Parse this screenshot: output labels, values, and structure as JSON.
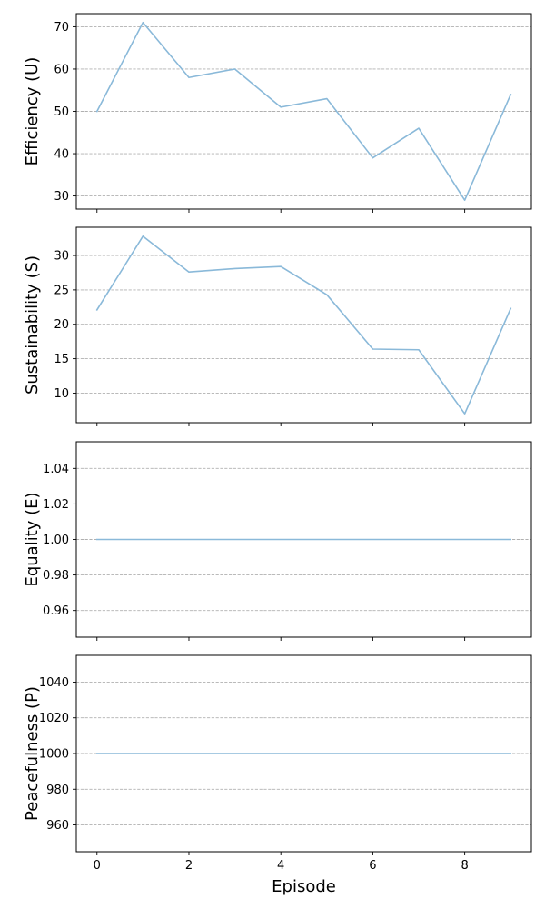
{
  "chart_data": [
    {
      "type": "line",
      "ylabel": "Efficiency (U)",
      "xlabel": "",
      "x": [
        0,
        1,
        2,
        3,
        4,
        5,
        6,
        7,
        8,
        9
      ],
      "series": [
        {
          "values": [
            50,
            71,
            58,
            60,
            51,
            53,
            39,
            46,
            29,
            54
          ]
        }
      ],
      "xlim": [
        -0.45,
        9.45
      ],
      "ylim": [
        26.9,
        73.1
      ],
      "yticks": [
        30,
        40,
        50,
        60,
        70
      ],
      "xticks": [
        0,
        2,
        4,
        6,
        8
      ],
      "show_xtick_labels": false,
      "grid": "y, dashed",
      "color": "#8ab9d9"
    },
    {
      "type": "line",
      "ylabel": "Sustainability (S)",
      "xlabel": "",
      "x": [
        0,
        1,
        2,
        3,
        4,
        5,
        6,
        7,
        8,
        9
      ],
      "series": [
        {
          "values": [
            22.1,
            32.8,
            27.6,
            28.1,
            28.4,
            24.3,
            16.4,
            16.3,
            7.0,
            22.3
          ]
        }
      ],
      "xlim": [
        -0.45,
        9.45
      ],
      "ylim": [
        5.7,
        34.1
      ],
      "yticks": [
        10,
        15,
        20,
        25,
        30
      ],
      "xticks": [
        0,
        2,
        4,
        6,
        8
      ],
      "show_xtick_labels": false,
      "grid": "y, dashed",
      "color": "#8ab9d9"
    },
    {
      "type": "line",
      "ylabel": "Equality (E)",
      "xlabel": "",
      "x": [
        0,
        1,
        2,
        3,
        4,
        5,
        6,
        7,
        8,
        9
      ],
      "series": [
        {
          "values": [
            1.0,
            1.0,
            1.0,
            1.0,
            1.0,
            1.0,
            1.0,
            1.0,
            1.0,
            1.0
          ]
        }
      ],
      "xlim": [
        -0.45,
        9.45
      ],
      "ylim": [
        0.945,
        1.055
      ],
      "yticks": [
        0.96,
        0.98,
        1.0,
        1.02,
        1.04
      ],
      "ytick_decimals": 2,
      "xticks": [
        0,
        2,
        4,
        6,
        8
      ],
      "show_xtick_labels": false,
      "grid": "y, dashed",
      "color": "#8ab9d9"
    },
    {
      "type": "line",
      "ylabel": "Peacefulness (P)",
      "xlabel": "Episode",
      "x": [
        0,
        1,
        2,
        3,
        4,
        5,
        6,
        7,
        8,
        9
      ],
      "series": [
        {
          "values": [
            1000,
            1000,
            1000,
            1000,
            1000,
            1000,
            1000,
            1000,
            1000,
            1000
          ]
        }
      ],
      "xlim": [
        -0.45,
        9.45
      ],
      "ylim": [
        945,
        1055
      ],
      "yticks": [
        960,
        980,
        1000,
        1020,
        1040
      ],
      "xticks": [
        0,
        2,
        4,
        6,
        8
      ],
      "show_xtick_labels": true,
      "grid": "y, dashed",
      "color": "#8ab9d9"
    }
  ]
}
